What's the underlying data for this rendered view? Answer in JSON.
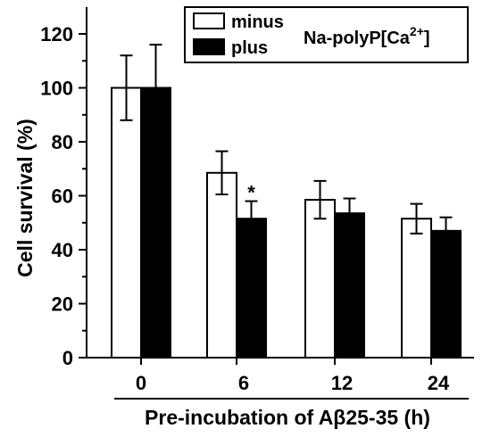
{
  "chart_data": {
    "type": "bar",
    "ylabel": "Cell survival (%)",
    "xlabel": "Pre-incubation of Aβ25-35 (h)",
    "categories": [
      "0",
      "6",
      "12",
      "24"
    ],
    "ylim": [
      0,
      130
    ],
    "yticks": [
      "0",
      "20",
      "40",
      "60",
      "80",
      "100",
      "120"
    ],
    "series": [
      {
        "name": "minus",
        "values": [
          100,
          68.5,
          58.5,
          51.5
        ],
        "errors": [
          12,
          8,
          7,
          5.5
        ],
        "fill": "#ffffff",
        "stroke": "#000000"
      },
      {
        "name": "plus",
        "values": [
          100,
          51.5,
          53.5,
          47
        ],
        "errors": [
          16,
          6.5,
          5.5,
          5
        ],
        "fill": "#000000",
        "stroke": "#000000"
      }
    ],
    "annotations": [
      {
        "text": "*",
        "category": "6",
        "series": "plus"
      }
    ],
    "legend": {
      "title": "Na-polyP[Ca",
      "title_sup": "2+",
      "title_end": "]",
      "placement": "top-right"
    },
    "grid": false
  }
}
